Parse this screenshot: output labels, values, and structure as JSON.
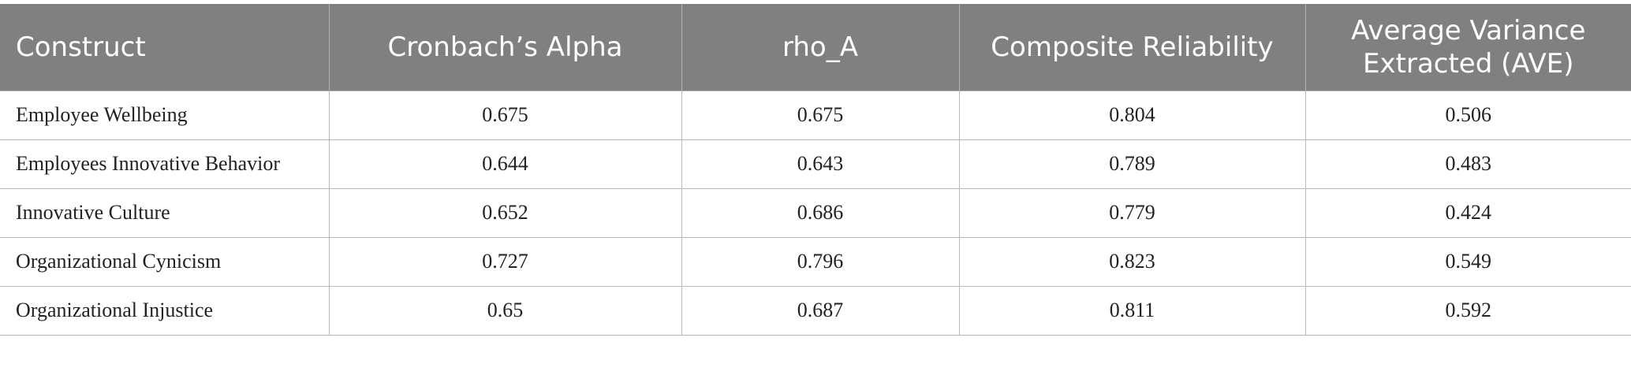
{
  "table": {
    "header": [
      "Construct",
      "Cronbach’s Alpha",
      "rho_A",
      "Composite Reliability",
      "Average Variance Extracted (AVE)"
    ],
    "rows": [
      [
        "Employee Wellbeing",
        0.675,
        0.675,
        0.804,
        0.506
      ],
      [
        "Employees Innovative Behavior",
        0.644,
        0.643,
        0.789,
        0.483
      ],
      [
        "Innovative Culture",
        0.652,
        0.686,
        0.779,
        0.424
      ],
      [
        "Organizational Cynicism",
        0.727,
        0.796,
        0.823,
        0.549
      ],
      [
        "Organizational Injustice",
        0.65,
        0.687,
        0.811,
        0.592
      ]
    ]
  }
}
